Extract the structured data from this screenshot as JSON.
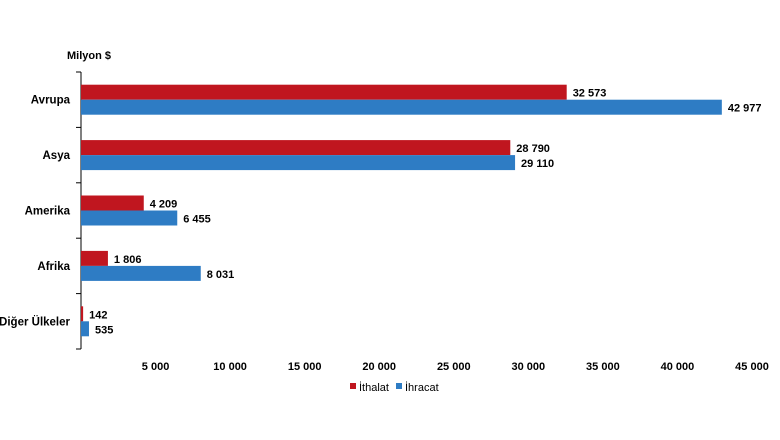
{
  "chart_data": {
    "type": "bar",
    "orientation": "horizontal",
    "unit_label": "Milyon $",
    "categories": [
      "Avrupa",
      "Asya",
      "Amerika",
      "Afrika",
      "Diğer Ülkeler"
    ],
    "series": [
      {
        "name": "İthalat",
        "values": [
          32573,
          28790,
          4209,
          1806,
          142
        ],
        "labels": [
          "32 573",
          "28 790",
          "4 209",
          "1 806",
          "142"
        ],
        "color": "#c0161f"
      },
      {
        "name": "İhracat",
        "values": [
          42977,
          29110,
          6455,
          8031,
          535
        ],
        "labels": [
          "42 977",
          "29 110",
          "6 455",
          "8 031",
          "535"
        ],
        "color": "#2e7cc4"
      }
    ],
    "xlim": [
      0,
      45000
    ],
    "xticks": [
      5000,
      10000,
      15000,
      20000,
      25000,
      30000,
      35000,
      40000,
      45000
    ],
    "xtick_labels": [
      "5 000",
      "10 000",
      "15 000",
      "20 000",
      "25 000",
      "30 000",
      "35 000",
      "40 000",
      "45 000"
    ],
    "grid": false,
    "legend_position": "bottom"
  }
}
